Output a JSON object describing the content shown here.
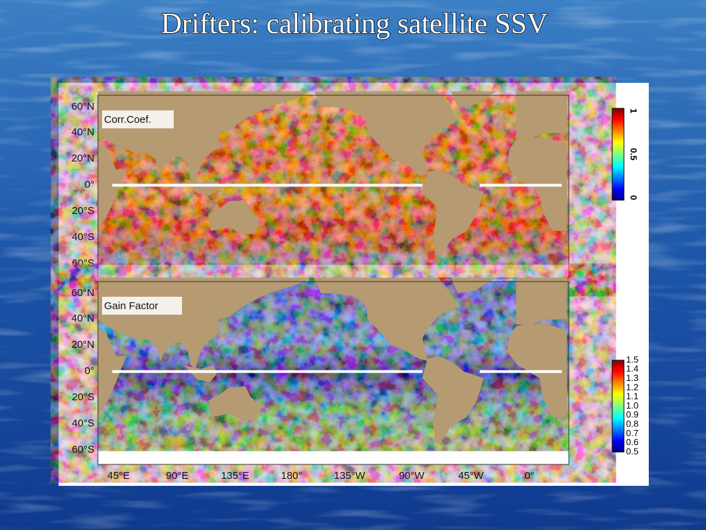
{
  "title": "Drifters: calibrating satellite SSV",
  "panels": [
    {
      "label": "Corr.Coef.",
      "lat_labels": [
        "60°N",
        "40°N",
        "20°N",
        "0°",
        "20°S",
        "40°S",
        "60°S"
      ],
      "colorbar_labels": [
        "1",
        "0.5",
        "0"
      ]
    },
    {
      "label": "Gain Factor",
      "lat_labels": [
        "60°N",
        "40°N",
        "20°N",
        "0°",
        "20°S",
        "40°S",
        "60°S"
      ],
      "colorbar_labels": [
        "1.5",
        "1.4",
        "1.3",
        "1.2",
        "1.1",
        "1.0",
        "0.9",
        "0.8",
        "0.7",
        "0.6",
        "0.5"
      ]
    }
  ],
  "lon_labels": [
    "45°E",
    "90°E",
    "135°E",
    "180°",
    "135°W",
    "90°W",
    "45°W",
    "0°"
  ]
}
